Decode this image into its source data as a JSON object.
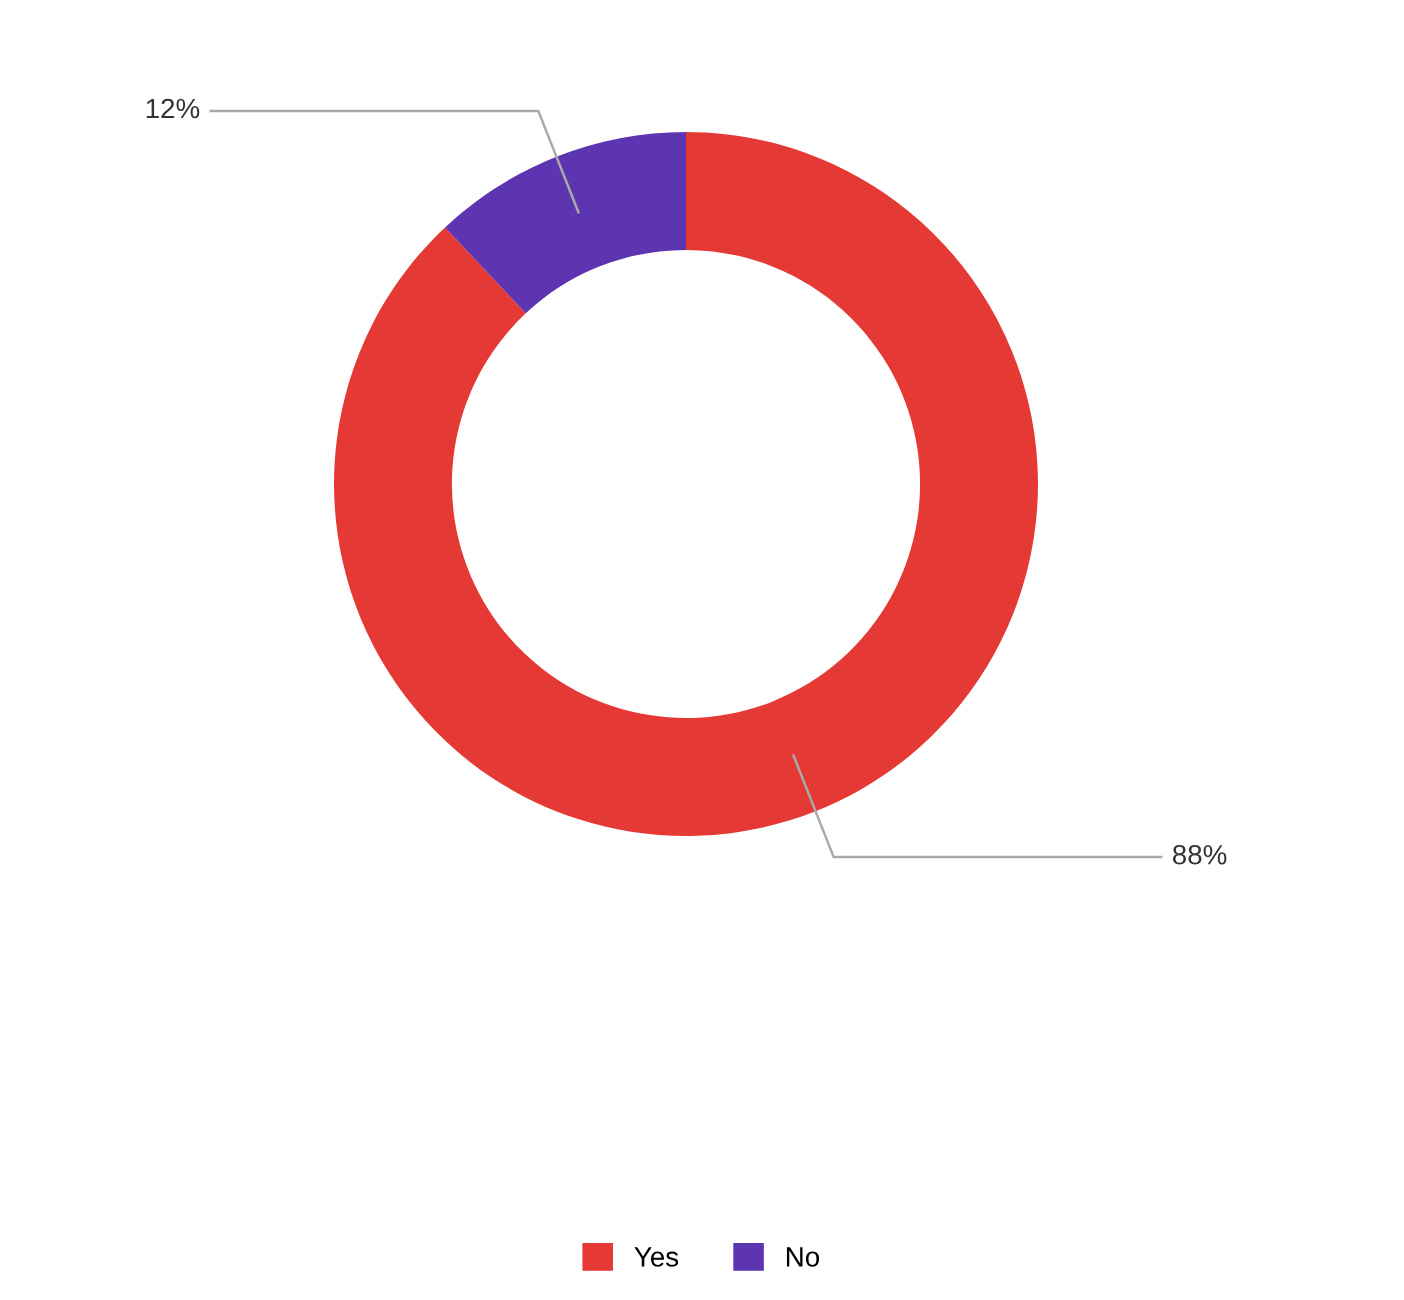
{
  "chart_data": {
    "type": "donut",
    "categories": [
      "Yes",
      "No"
    ],
    "values": [
      88,
      12
    ],
    "colors": [
      "#e53935",
      "#5e35b1"
    ],
    "value_labels": [
      "88%",
      "12%"
    ],
    "legend": "bottom"
  }
}
